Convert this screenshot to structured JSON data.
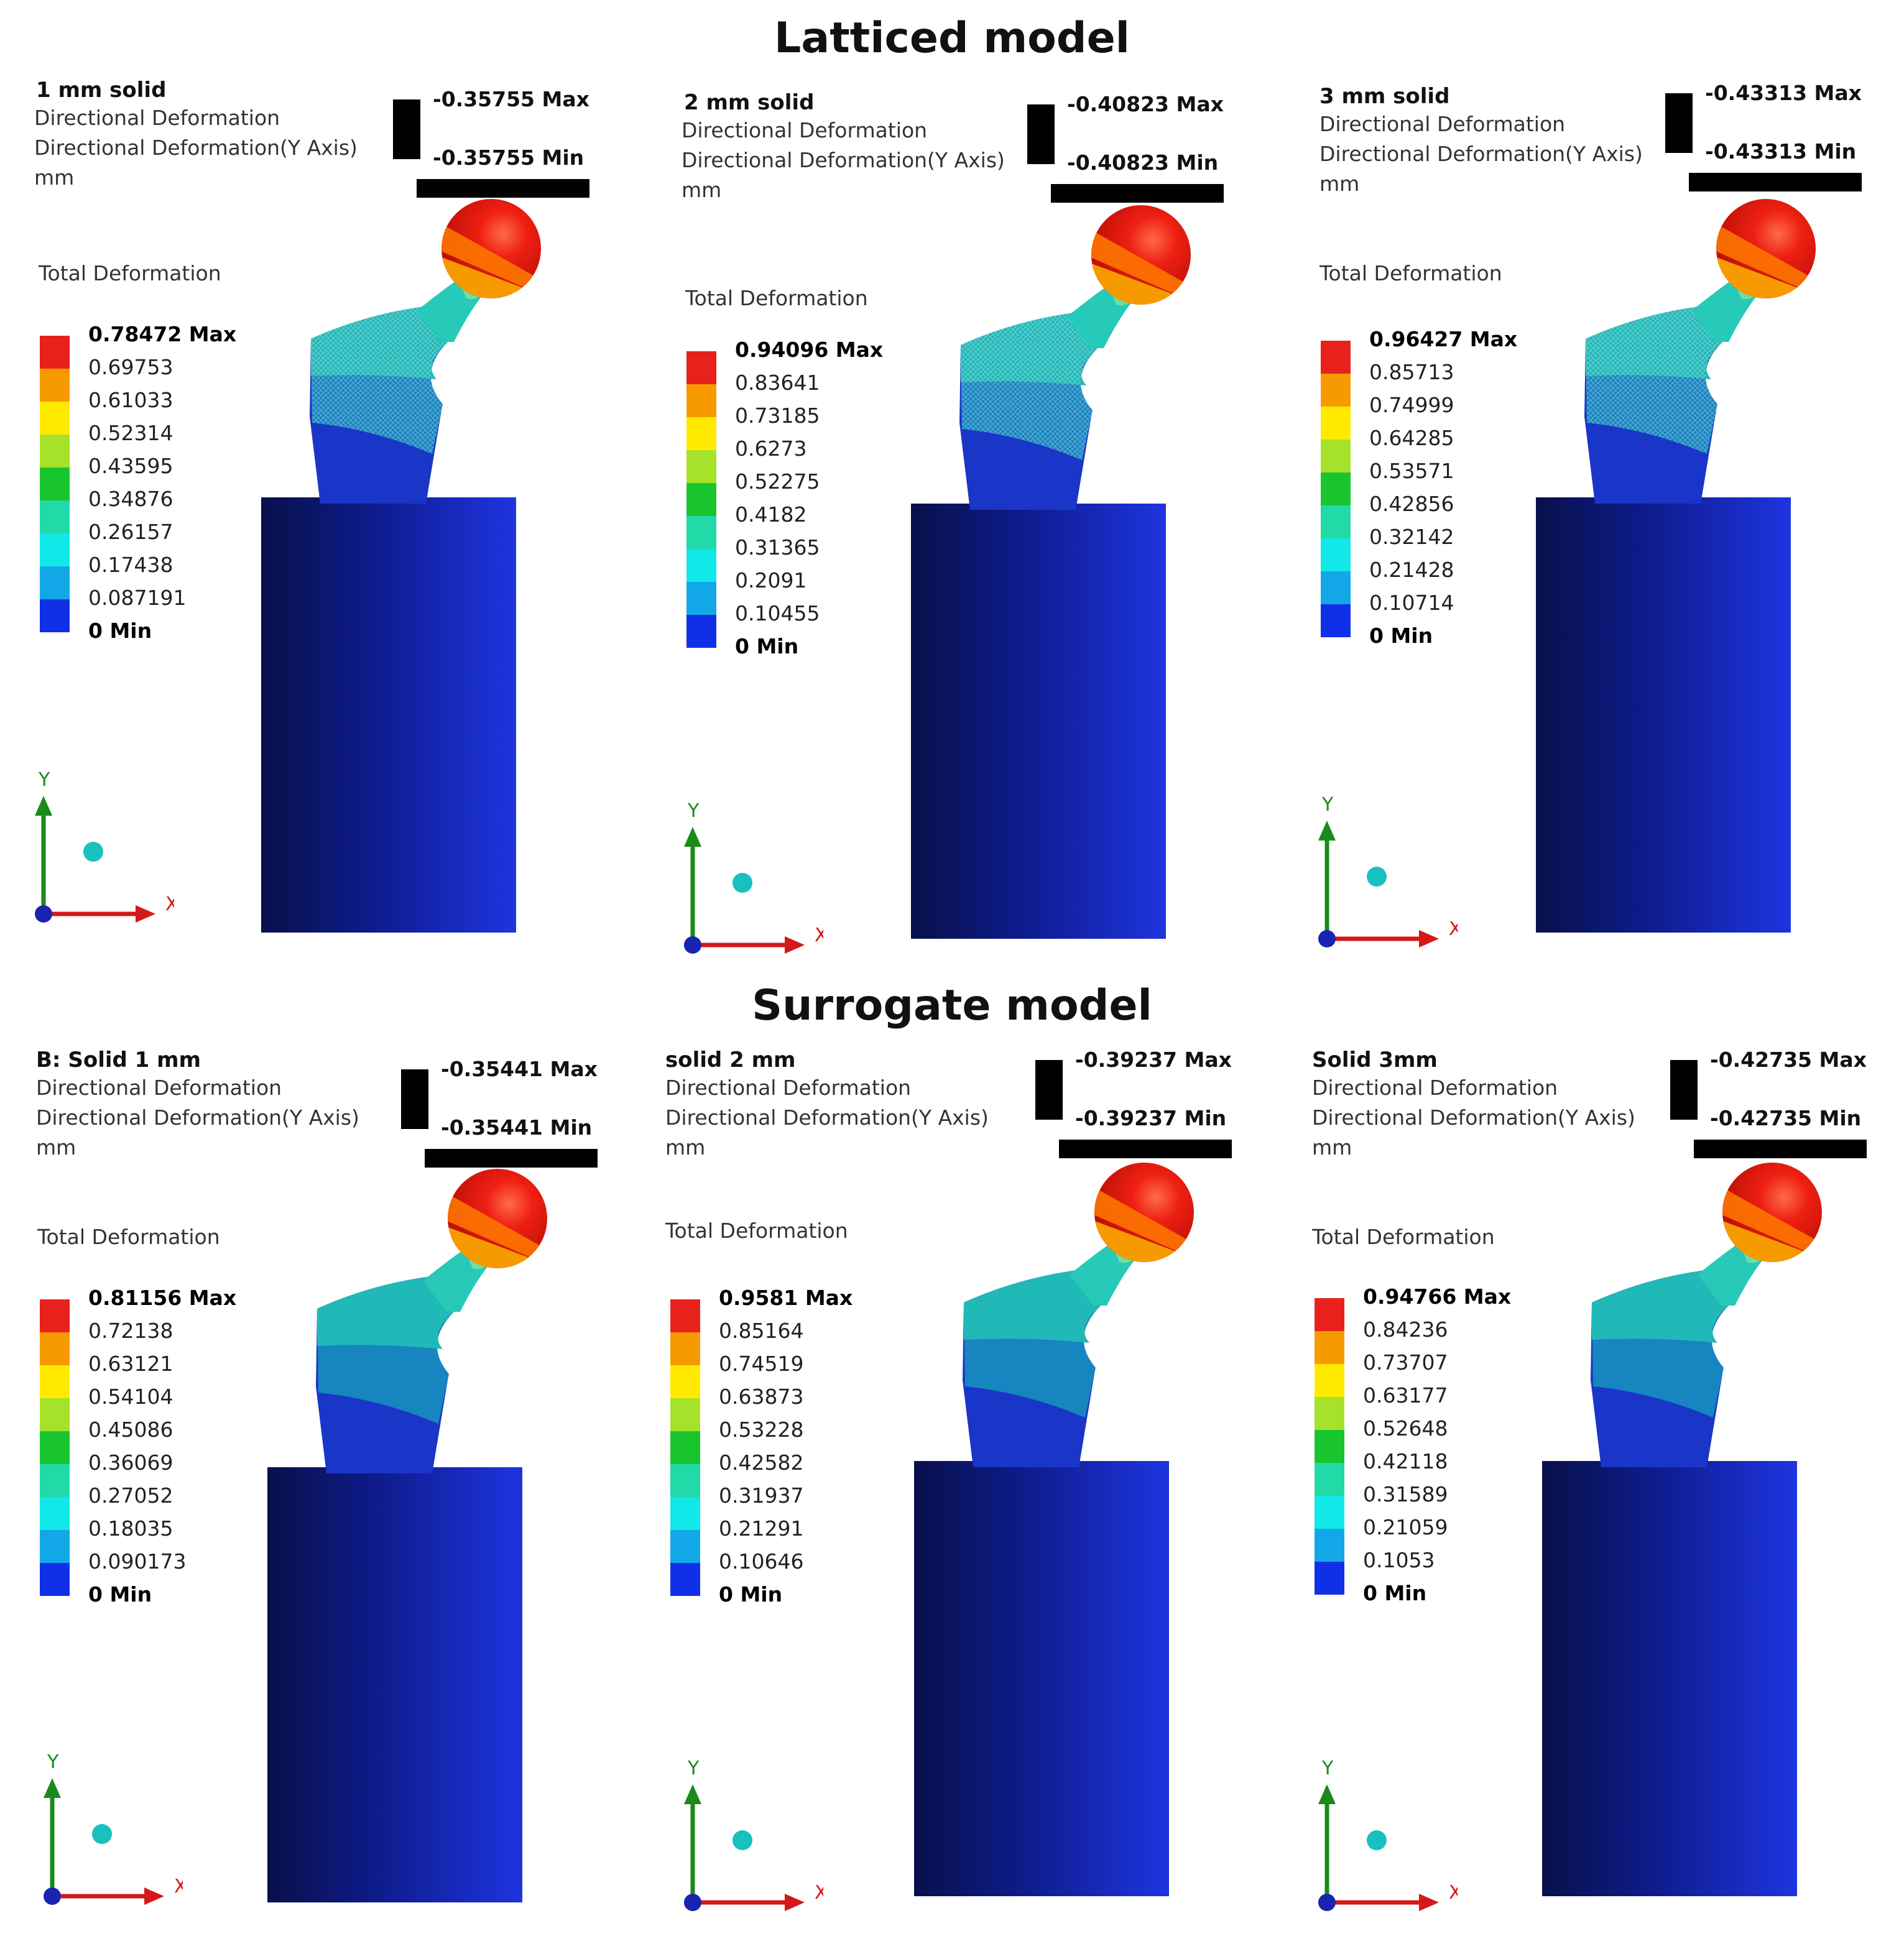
{
  "titles": {
    "top": "Latticed model",
    "bottom": "Surrogate model"
  },
  "common": {
    "directional_label": "Directional Deformation",
    "directional_axis_label": "Directional Deformation(Y Axis)",
    "unit": "mm",
    "total_label": "Total Deformation",
    "axis_x": "X",
    "axis_y": "Y"
  },
  "legend_colors": [
    "#e8211d",
    "#f79a00",
    "#ffea00",
    "#a6e22a",
    "#19c52e",
    "#22d9a8",
    "#11e8e8",
    "#12a8e8",
    "#1030e8"
  ],
  "panels": [
    {
      "title": "1 mm solid",
      "dir_max": "-0.35755 Max",
      "dir_min": "-0.35755 Min",
      "legend_max": "0.78472 Max",
      "legend_mid": [
        "0.69753",
        "0.61033",
        "0.52314",
        "0.43595",
        "0.34876",
        "0.26157",
        "0.17438",
        "0.087191"
      ],
      "legend_min": "0 Min"
    },
    {
      "title": "2 mm solid",
      "dir_max": "-0.40823 Max",
      "dir_min": "-0.40823 Min",
      "legend_max": "0.94096 Max",
      "legend_mid": [
        "0.83641",
        "0.73185",
        "0.6273",
        "0.52275",
        "0.4182",
        "0.31365",
        "0.2091",
        "0.10455"
      ],
      "legend_min": "0 Min"
    },
    {
      "title": "3 mm solid",
      "dir_max": "-0.43313 Max",
      "dir_min": "-0.43313 Min",
      "legend_max": "0.96427 Max",
      "legend_mid": [
        "0.85713",
        "0.74999",
        "0.64285",
        "0.53571",
        "0.42856",
        "0.32142",
        "0.21428",
        "0.10714"
      ],
      "legend_min": "0 Min"
    },
    {
      "title": "B: Solid 1 mm",
      "dir_max": "-0.35441 Max",
      "dir_min": "-0.35441 Min",
      "legend_max": "0.81156 Max",
      "legend_mid": [
        "0.72138",
        "0.63121",
        "0.54104",
        "0.45086",
        "0.36069",
        "0.27052",
        "0.18035",
        "0.090173"
      ],
      "legend_min": "0 Min"
    },
    {
      "title": "solid  2 mm",
      "dir_max": "-0.39237 Max",
      "dir_min": "-0.39237 Min",
      "legend_max": "0.9581 Max",
      "legend_mid": [
        "0.85164",
        "0.74519",
        "0.63873",
        "0.53228",
        "0.42582",
        "0.31937",
        "0.21291",
        "0.10646"
      ],
      "legend_min": "0 Min"
    },
    {
      "title": "Solid 3mm",
      "dir_max": "-0.42735 Max",
      "dir_min": "-0.42735 Min",
      "legend_max": "0.94766 Max",
      "legend_mid": [
        "0.84236",
        "0.73707",
        "0.63177",
        "0.52648",
        "0.42118",
        "0.31589",
        "0.21059",
        "0.1053"
      ],
      "legend_min": "0 Min"
    }
  ]
}
